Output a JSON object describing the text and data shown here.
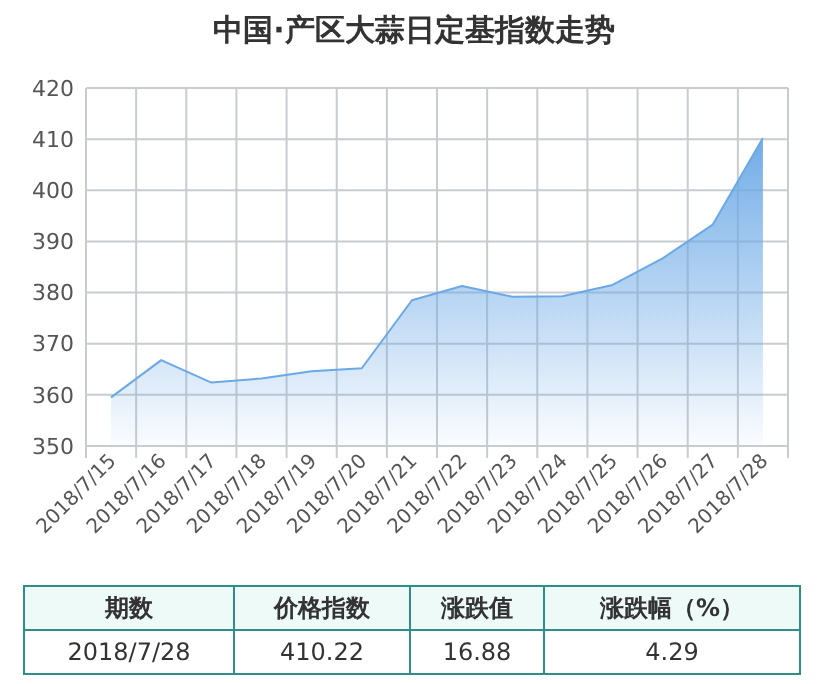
{
  "chart_data": {
    "type": "area",
    "title": "中国·产区大蒜日定基指数走势",
    "categories": [
      "2018/7/15",
      "2018/7/16",
      "2018/7/17",
      "2018/7/18",
      "2018/7/19",
      "2018/7/20",
      "2018/7/21",
      "2018/7/22",
      "2018/7/23",
      "2018/7/24",
      "2018/7/25",
      "2018/7/26",
      "2018/7/27",
      "2018/7/28"
    ],
    "series": [
      {
        "color": "#6aa8e6",
        "values": [
          359.5,
          366.8,
          362.4,
          363.2,
          364.6,
          365.2,
          378.5,
          381.3,
          379.2,
          379.3,
          381.5,
          386.7,
          393.3,
          410.22
        ]
      }
    ],
    "ylim": [
      350,
      420
    ],
    "yticks": [
      350,
      360,
      370,
      380,
      390,
      400,
      410,
      420
    ],
    "grid": true,
    "annotations": [
      "期数",
      "价格指数",
      "涨跌值",
      "涨跌幅（%）",
      "2018/7/28",
      "410.22",
      "16.88",
      "4.29"
    ]
  }
}
